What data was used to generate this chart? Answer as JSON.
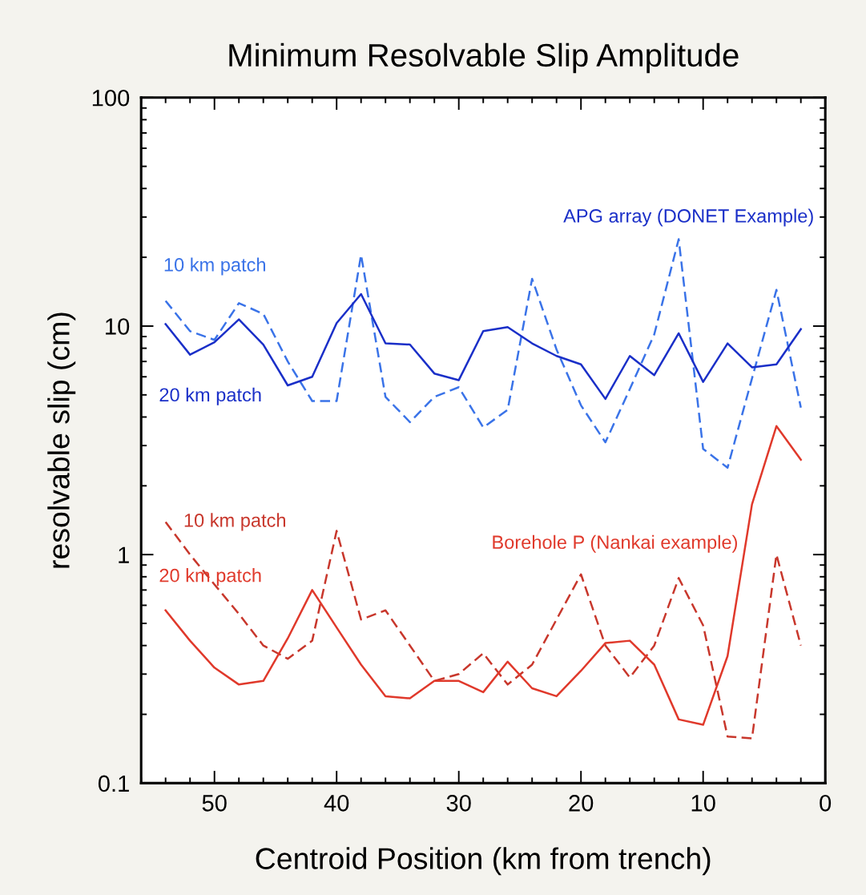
{
  "chart_data": {
    "type": "line",
    "title": "Minimum Resolvable Slip Amplitude",
    "xlabel": "Centroid Position (km from trench)",
    "ylabel": "resolvable slip (cm)",
    "x": [
      54,
      52,
      50,
      48,
      46,
      44,
      42,
      40,
      38,
      36,
      34,
      32,
      30,
      28,
      26,
      24,
      22,
      20,
      18,
      16,
      14,
      12,
      10,
      8,
      6,
      4,
      2
    ],
    "series": [
      {
        "name": "10 km patch",
        "color": "#3a73e8",
        "line_style": "dashed",
        "values": [
          12.9,
          9.5,
          8.7,
          12.6,
          11.3,
          7.0,
          4.7,
          4.7,
          20.5,
          4.9,
          3.8,
          4.9,
          5.4,
          3.6,
          4.3,
          16.1,
          7.9,
          4.5,
          3.1,
          5.3,
          9.2,
          24,
          2.9,
          2.4,
          5.9,
          14.4,
          4.4
        ]
      },
      {
        "name": "20 km patch",
        "color": "#1a2fc8",
        "line_style": "solid",
        "values": [
          10.2,
          7.5,
          8.5,
          10.7,
          8.3,
          5.5,
          6.0,
          10.3,
          13.8,
          8.4,
          8.3,
          6.2,
          5.8,
          9.5,
          9.9,
          8.4,
          7.4,
          6.8,
          4.8,
          7.4,
          6.1,
          9.3,
          5.7,
          8.4,
          6.6,
          6.8,
          9.7
        ]
      },
      {
        "name": "10 km patch",
        "color": "#c8372c",
        "line_style": "dashed",
        "values": [
          1.39,
          1.0,
          0.74,
          0.55,
          0.4,
          0.35,
          0.42,
          1.27,
          0.52,
          0.57,
          0.4,
          0.28,
          0.3,
          0.37,
          0.27,
          0.33,
          0.52,
          0.82,
          0.4,
          0.29,
          0.4,
          0.79,
          0.49,
          0.16,
          0.157,
          1.0,
          0.4
        ]
      },
      {
        "name": "20 km patch",
        "color": "#e0392b",
        "line_style": "solid",
        "values": [
          0.57,
          0.42,
          0.32,
          0.27,
          0.28,
          0.43,
          0.7,
          0.48,
          0.33,
          0.24,
          0.235,
          0.28,
          0.28,
          0.25,
          0.34,
          0.26,
          0.24,
          0.31,
          0.41,
          0.42,
          0.33,
          0.19,
          0.18,
          0.36,
          1.66,
          3.65,
          2.6
        ]
      }
    ],
    "annotations": [
      "APG array (DONET Example)",
      "Borehole P (Nankai example)"
    ],
    "log": "y",
    "xlim": [
      56,
      0
    ],
    "ylim": [
      0.1,
      100
    ],
    "xticks": [
      50,
      40,
      30,
      20,
      10,
      0
    ],
    "yticks": [
      0.1,
      1,
      10,
      100
    ],
    "grid": false,
    "legend": false,
    "marker": "none"
  }
}
